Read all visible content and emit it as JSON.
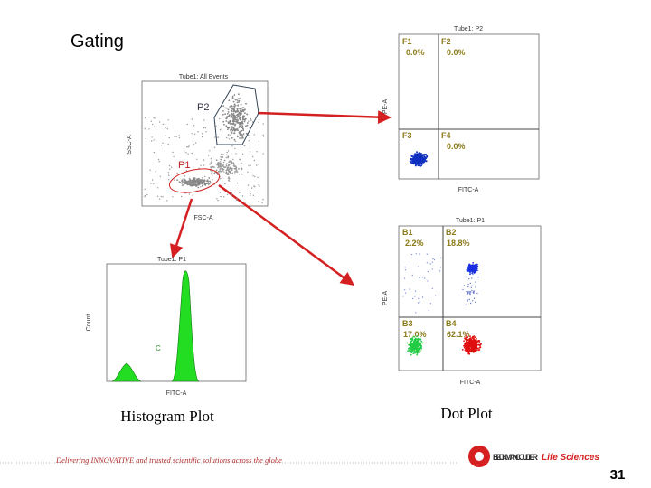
{
  "title": "Gating",
  "gating_plot": {
    "title": "Tube1: All Events",
    "x_label": "FSC-A",
    "y_label": "SSC-A",
    "gates": [
      "P2",
      "P1"
    ]
  },
  "quadrant_plot": {
    "title": "Tube1: P2",
    "x_label": "FITC-A",
    "y_label": "PE-A",
    "quadrants": [
      {
        "name": "F1",
        "percent": "0.0%"
      },
      {
        "name": "F2",
        "percent": "0.0%"
      },
      {
        "name": "F3"
      },
      {
        "name": "F4",
        "percent": "0.0%"
      }
    ]
  },
  "dot_plot": {
    "title": "Tube1: P1",
    "x_label": "FITC-A",
    "y_label": "PE-A",
    "quadrants": [
      {
        "name": "B1",
        "percent": "2.2%"
      },
      {
        "name": "B2",
        "percent": "18.8%"
      },
      {
        "name": "B3",
        "percent": "17.0%"
      },
      {
        "name": "B4",
        "percent": "62.1%"
      }
    ]
  },
  "histogram": {
    "title": "Tube1: P1",
    "x_label": "FITC-A",
    "y_label": "Count",
    "marker": "C"
  },
  "captions": {
    "histogram": "Histogram Plot",
    "dot_plot": "Dot Plot"
  },
  "footer": {
    "tagline": "Delivering INNOVATIVE and trusted scientific solutions across the globe",
    "brand": "BECKMAN COULTER",
    "division": "Life Sciences",
    "page": "31"
  }
}
